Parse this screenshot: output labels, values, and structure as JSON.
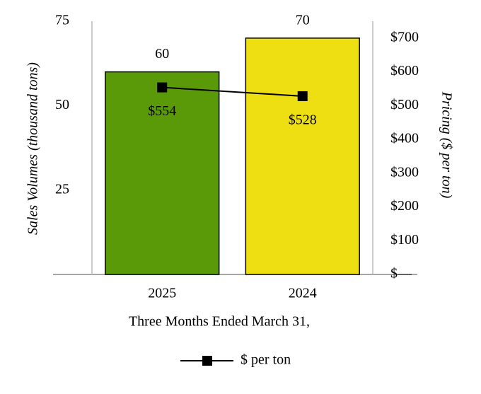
{
  "chart_data": {
    "type": "bar-line",
    "categories": [
      "2025",
      "2024"
    ],
    "x_label": "Three Months Ended March 31,",
    "y_label": "Sales Volumes (thousand tons)",
    "y2_label": "Pricing ($ per ton)",
    "ylim": [
      0,
      75
    ],
    "yticks": [
      25,
      50,
      75
    ],
    "y2lim": [
      0,
      750
    ],
    "y2ticks": [
      {
        "value": 0,
        "label": "$—"
      },
      {
        "value": 100,
        "label": "$100"
      },
      {
        "value": 200,
        "label": "$200"
      },
      {
        "value": 300,
        "label": "$300"
      },
      {
        "value": 400,
        "label": "$400"
      },
      {
        "value": 500,
        "label": "$500"
      },
      {
        "value": 600,
        "label": "$600"
      },
      {
        "value": 700,
        "label": "$700"
      }
    ],
    "series": [
      {
        "type": "bar",
        "colors": [
          "#5a9a08",
          "#eedf12"
        ],
        "values": [
          60,
          70
        ]
      },
      {
        "type": "line",
        "name": "$ per ton",
        "axis": "y2",
        "color": "#000000",
        "values": [
          554,
          528
        ],
        "value_labels": [
          "$554",
          "$528"
        ]
      }
    ],
    "legend": "bottom"
  }
}
